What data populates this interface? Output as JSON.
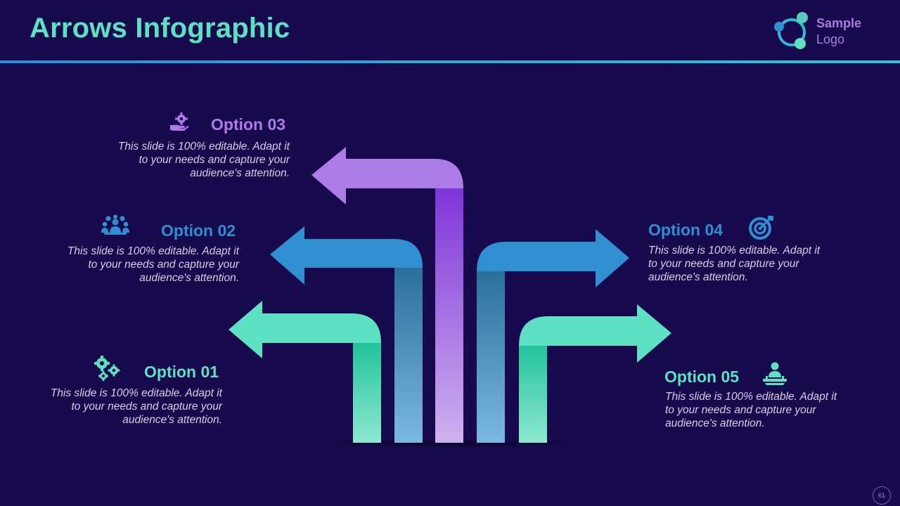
{
  "slide": {
    "title": "Arrows Infographic",
    "logo": {
      "line1": "Sample",
      "line2": "Logo"
    },
    "page_number": "61"
  },
  "options": [
    {
      "heading": "Option 01",
      "text": "This slide is 100% editable. Adapt it to your needs and capture your audience's attention.",
      "icon": "gears-icon",
      "color": "#5ee0c3"
    },
    {
      "heading": "Option 02",
      "text": "This slide is 100% editable. Adapt it to your needs and capture your audience's attention.",
      "icon": "team-icon",
      "color": "#2f8fd0"
    },
    {
      "heading": "Option 03",
      "text": "This slide is 100% editable. Adapt it to your needs and capture your audience's attention.",
      "icon": "hand-gear-icon",
      "color": "#ac7de6"
    },
    {
      "heading": "Option 04",
      "text": "This slide is 100% editable. Adapt it to your needs and capture your audience's attention.",
      "icon": "target-icon",
      "color": "#2f8fd0"
    },
    {
      "heading": "Option 05",
      "text": "This slide is 100% editable. Adapt it to your needs and capture your audience's attention.",
      "icon": "presenter-icon",
      "color": "#5ee0c3"
    }
  ],
  "colors": {
    "background": "#170a4d",
    "teal": "#5ee0c3",
    "blue": "#2f8fd0",
    "purple": "#ac7de6"
  }
}
